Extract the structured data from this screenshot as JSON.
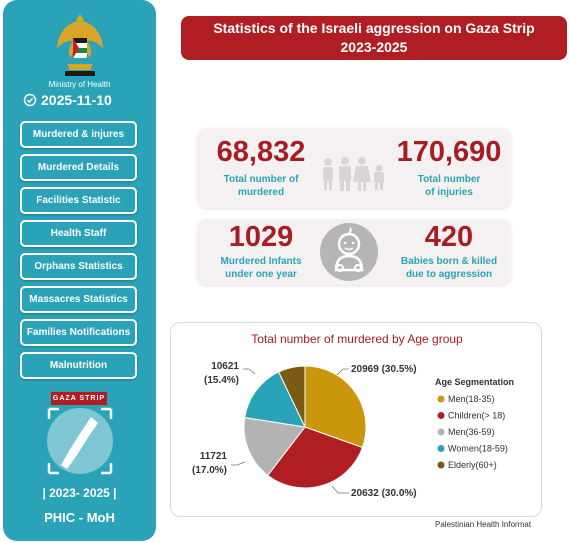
{
  "sidebar": {
    "ministry": "Ministry of Health",
    "date": "2025-11-10",
    "nav": [
      {
        "label": "Murdered & injures"
      },
      {
        "label": "Murdered Details"
      },
      {
        "label": "Facilities Statistic"
      },
      {
        "label": "Health Staff"
      },
      {
        "label": "Orphans Statistics"
      },
      {
        "label": "Massacres Statistics"
      },
      {
        "label": "Families Notifications"
      },
      {
        "label": "Malnutrition"
      }
    ],
    "gaza_tag": "GAZA STRIP",
    "years": "| 2023- 2025 |",
    "org": "PHIC - MoH"
  },
  "header": {
    "title_line1": "Statistics of the Israeli aggression on Gaza Strip",
    "title_line2": "2023-2025"
  },
  "stats": {
    "murdered": {
      "value": "68,832",
      "label_line1": "Total number of",
      "label_line2": "murdered"
    },
    "injuries": {
      "value": "170,690",
      "label_line1": "Total number",
      "label_line2": "of injuries"
    },
    "infants": {
      "value": "1029",
      "label_line1": "Murdered Infants",
      "label_line2": "under one year"
    },
    "babies": {
      "value": "420",
      "label_line1": "Babies born & killed",
      "label_line2": "due to aggression"
    }
  },
  "chart_data": {
    "type": "pie",
    "title": "Total number of murdered by Age group",
    "legend_title": "Age Segmentation",
    "legend_position": "right",
    "series": [
      {
        "name": "Men(18-35)",
        "value": 20969,
        "label": "20969 (30.5%)",
        "color": "#c9960c"
      },
      {
        "name": "Children(> 18)",
        "value": 20632,
        "label": "20632 (30.0%)",
        "color": "#b01e23"
      },
      {
        "name": "Men(36-59)",
        "value": 11721,
        "label_line1": "11721",
        "label_line2": "(17.0%)",
        "color": "#b3b3b3"
      },
      {
        "name": "Women(18-59)",
        "value": 10621,
        "label_line1": "10621",
        "label_line2": "(15.4%)",
        "color": "#2aa3b8"
      },
      {
        "name": "Elderly(60+)",
        "value": 4889,
        "color": "#7b5a12"
      }
    ]
  },
  "footer": {
    "text": "Palestinian Health Informat"
  }
}
